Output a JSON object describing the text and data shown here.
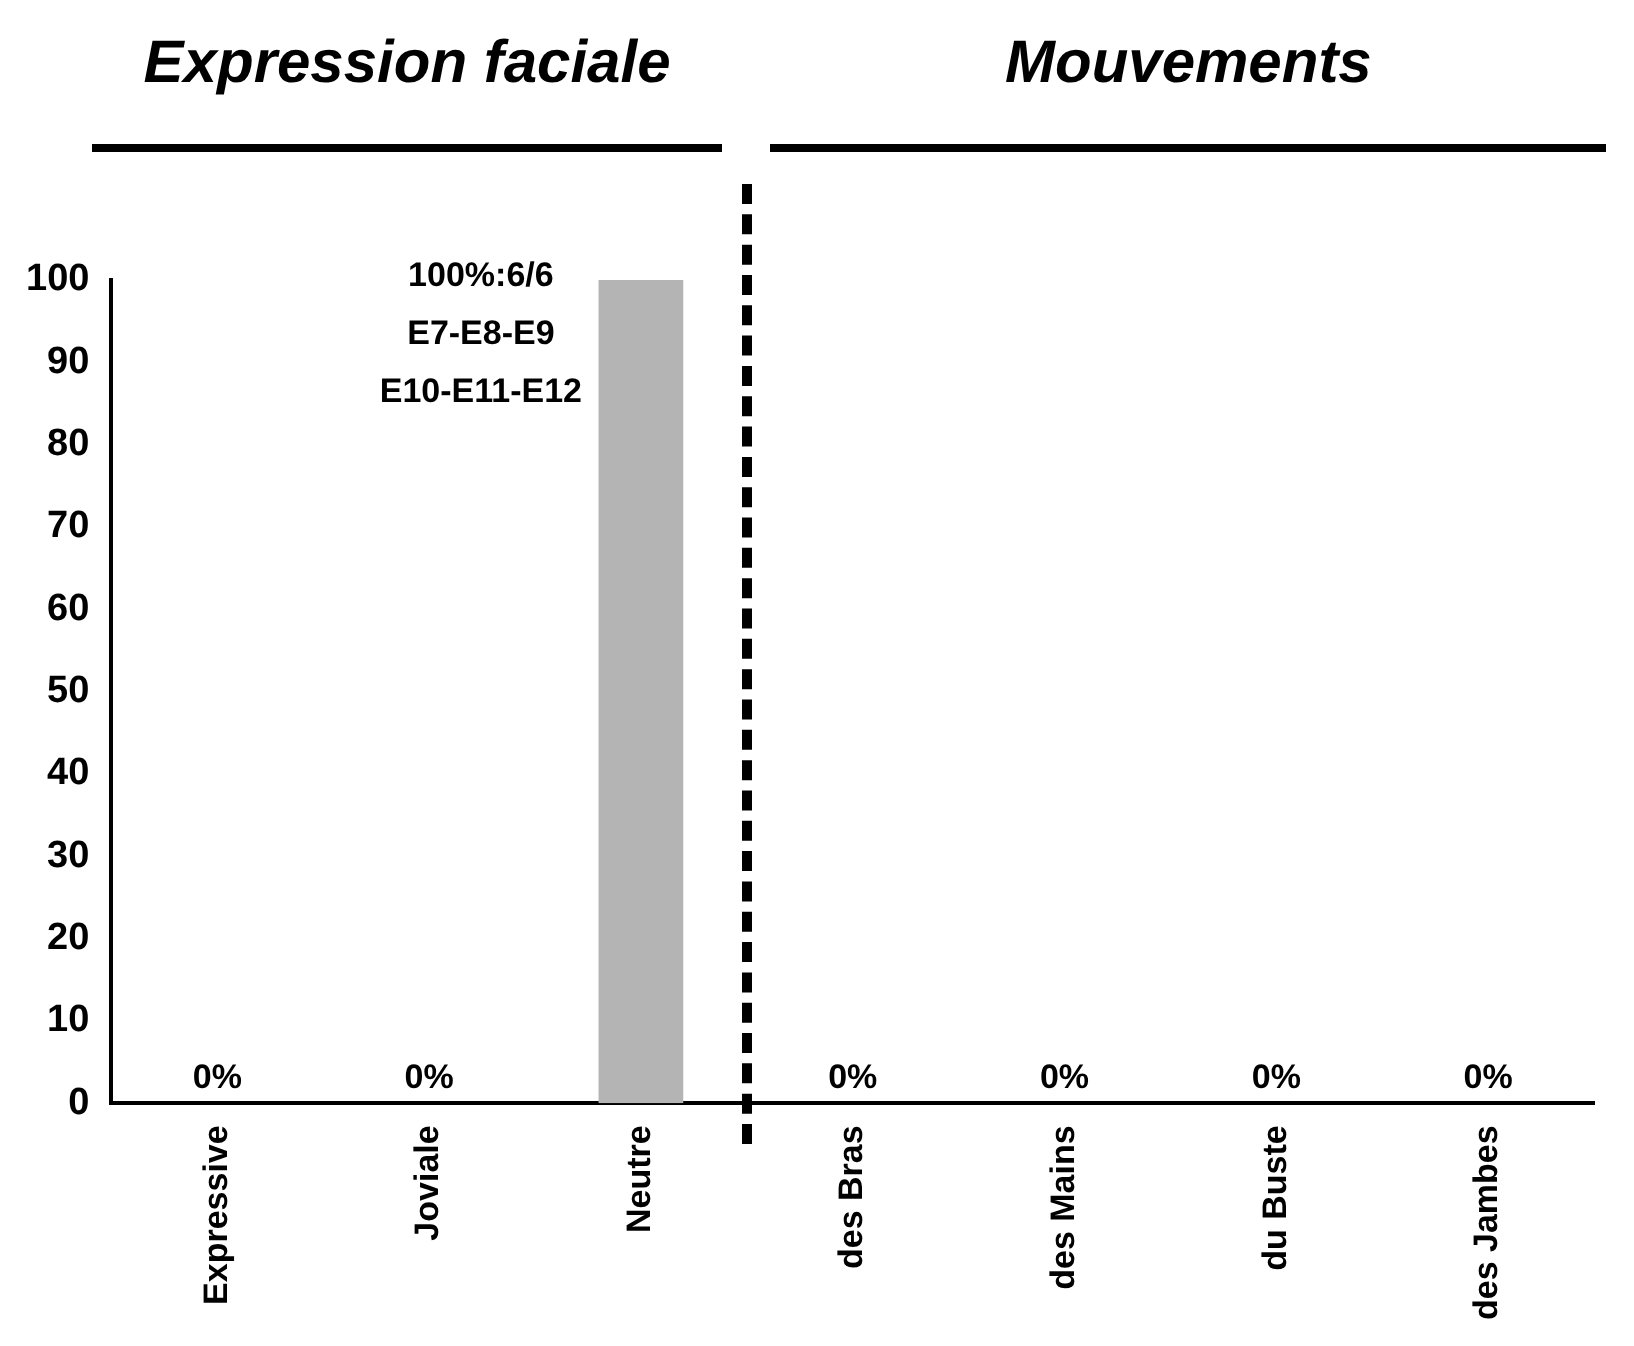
{
  "chart_data": {
    "type": "bar",
    "categories": [
      "Expressive",
      "Joviale",
      "Neutre",
      "des Bras",
      "des Mains",
      "du Buste",
      "des Jambes"
    ],
    "values": [
      0,
      0,
      100,
      0,
      0,
      0,
      0
    ],
    "value_labels": [
      "0%",
      "0%",
      null,
      "0%",
      "0%",
      "0%",
      "0%"
    ],
    "color": "#b4b4b4",
    "ylim": [
      0,
      100
    ],
    "yticks": [
      0,
      10,
      20,
      30,
      40,
      50,
      60,
      70,
      80,
      90,
      100
    ],
    "grid": false,
    "legend": false,
    "annotations": [
      "Expression faciale",
      "Mouvements",
      {
        "text": "100%:6/6\nE7-E8-E9\nE10-E11-E12",
        "x": "Neutre",
        "y": 100
      }
    ]
  }
}
